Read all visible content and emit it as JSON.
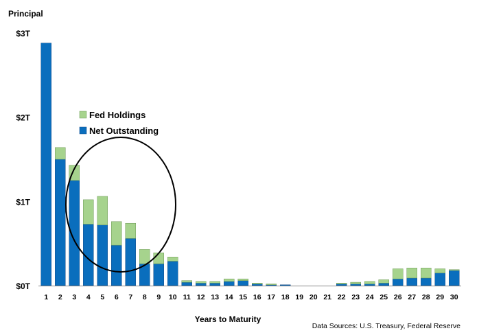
{
  "chart_data": {
    "type": "bar",
    "stacked": true,
    "ylabel": "Principal",
    "xlabel": "Years to Maturity",
    "source": "Data Sources: U.S. Treasury, Federal Reserve",
    "ylim": [
      0,
      3
    ],
    "y_ticks": [
      {
        "value": 0,
        "label": "$0T"
      },
      {
        "value": 1,
        "label": "$1T"
      },
      {
        "value": 2,
        "label": "$2T"
      },
      {
        "value": 3,
        "label": "$3T"
      }
    ],
    "categories": [
      "1",
      "2",
      "3",
      "4",
      "5",
      "6",
      "7",
      "8",
      "9",
      "10",
      "11",
      "12",
      "13",
      "14",
      "15",
      "16",
      "17",
      "18",
      "19",
      "20",
      "21",
      "22",
      "23",
      "24",
      "25",
      "26",
      "27",
      "28",
      "29",
      "30"
    ],
    "series": [
      {
        "name": "Net Outstanding",
        "color": "#0a6ebd",
        "values": [
          2.88,
          1.5,
          1.25,
          0.73,
          0.72,
          0.48,
          0.56,
          0.26,
          0.26,
          0.29,
          0.04,
          0.03,
          0.03,
          0.05,
          0.06,
          0.02,
          0.01,
          0.01,
          0.0,
          0.0,
          0.0,
          0.02,
          0.02,
          0.02,
          0.03,
          0.08,
          0.09,
          0.09,
          0.15,
          0.18
        ]
      },
      {
        "name": "Fed Holdings",
        "color": "#a6d38d",
        "values": [
          0.0,
          0.14,
          0.18,
          0.29,
          0.34,
          0.28,
          0.18,
          0.17,
          0.13,
          0.05,
          0.02,
          0.02,
          0.02,
          0.03,
          0.02,
          0.01,
          0.01,
          0.0,
          0.0,
          0.0,
          0.0,
          0.01,
          0.02,
          0.03,
          0.04,
          0.12,
          0.12,
          0.12,
          0.05,
          0.01
        ]
      }
    ],
    "legend": {
      "position": "upper-left-inside"
    }
  }
}
